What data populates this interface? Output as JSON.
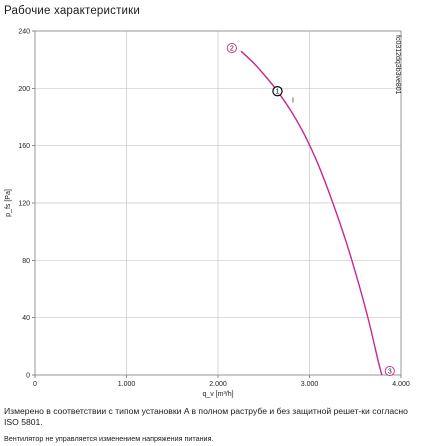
{
  "title": "Рабочие характеристики",
  "chart_data": {
    "type": "line",
    "ylabel": "p_fs [Pa]",
    "xlabel": "q_v [m³/h]",
    "xlim": [
      0,
      4000
    ],
    "ylim": [
      0,
      240
    ],
    "x_ticks": [
      0,
      1000,
      2000,
      3000,
      4000
    ],
    "x_tick_labels": [
      "0",
      "1.000",
      "2.000",
      "3.000",
      "4.000"
    ],
    "y_ticks": [
      0,
      40,
      80,
      120,
      160,
      200,
      240
    ],
    "y_tick_labels": [
      "0",
      "40",
      "80",
      "120",
      "160",
      "200",
      "240"
    ],
    "grid": true,
    "series": [
      {
        "name": "I",
        "color": "#c8288c",
        "x": [
          2250,
          2400,
          2550,
          2650,
          2800,
          2950,
          3100,
          3250,
          3400,
          3550,
          3650,
          3750,
          3790
        ],
        "y": [
          226,
          217,
          206,
          198,
          184,
          167,
          146,
          121,
          93,
          61,
          37,
          10,
          0
        ]
      }
    ],
    "markers": [
      {
        "label": "2",
        "x": 2250,
        "y": 226,
        "style": "pink-circle",
        "placement": "left"
      },
      {
        "label": "1",
        "x": 2650,
        "y": 198,
        "style": "black-circle",
        "placement": "on"
      },
      {
        "label": "3",
        "x": 3790,
        "y": 0,
        "style": "pink-circle",
        "placement": "right"
      }
    ],
    "curve_label": {
      "text": "I",
      "x": 2820,
      "y": 190
    },
    "side_code": "fc0312dq3b3ve801"
  },
  "notes": {
    "line1": "Измерено в соответствии с типом установки A в полном раструбе и без защитной решет-ки согласно ISO 5801.",
    "line2": "Вентилятор не управляется изменением напряжения питания."
  }
}
